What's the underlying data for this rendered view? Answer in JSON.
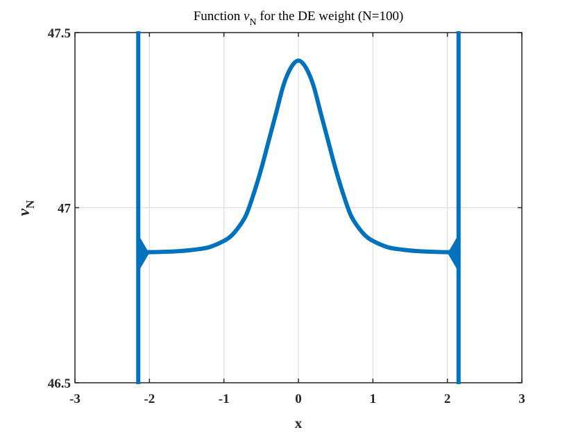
{
  "chart_data": {
    "type": "line",
    "title_prefix": "Function ",
    "title_symbol": "ν",
    "title_subscript": "N",
    "title_suffix": " for the DE weight (N=100)",
    "xlabel": "x",
    "ylabel_symbol": "ν",
    "ylabel_subscript": "N",
    "xlim": [
      -3,
      3
    ],
    "ylim": [
      46.5,
      47.5
    ],
    "xticks": [
      -3,
      -2,
      -1,
      0,
      1,
      2,
      3
    ],
    "xtick_labels": [
      "-3",
      "-2",
      "-1",
      "0",
      "1",
      "2",
      "3"
    ],
    "yticks": [
      46.5,
      47,
      47.5
    ],
    "ytick_labels": [
      "46.5",
      "47",
      "47.5"
    ],
    "grid": true,
    "line_color": "#0072BD",
    "series": [
      {
        "x": [
          -2.15,
          -2.1,
          -2.0,
          -1.8,
          -1.6,
          -1.4,
          -1.2,
          -1.0,
          -0.9,
          -0.8,
          -0.7,
          -0.6,
          -0.5,
          -0.4,
          -0.3,
          -0.2,
          -0.1,
          0.0,
          0.1,
          0.2,
          0.3,
          0.4,
          0.5,
          0.6,
          0.7,
          0.8,
          0.9,
          1.0,
          1.2,
          1.4,
          1.6,
          1.8,
          2.0,
          2.1,
          2.15
        ],
        "y": [
          46.87,
          46.875,
          46.873,
          46.874,
          46.876,
          46.88,
          46.887,
          46.905,
          46.92,
          46.945,
          46.98,
          47.04,
          47.11,
          47.19,
          47.27,
          47.35,
          47.4,
          47.42,
          47.4,
          47.35,
          47.27,
          47.19,
          47.11,
          47.04,
          46.98,
          46.945,
          46.92,
          46.905,
          46.887,
          46.88,
          46.876,
          46.874,
          46.873,
          46.875,
          46.87
        ]
      }
    ],
    "boundary_lines_x": [
      -2.15,
      2.15
    ]
  }
}
